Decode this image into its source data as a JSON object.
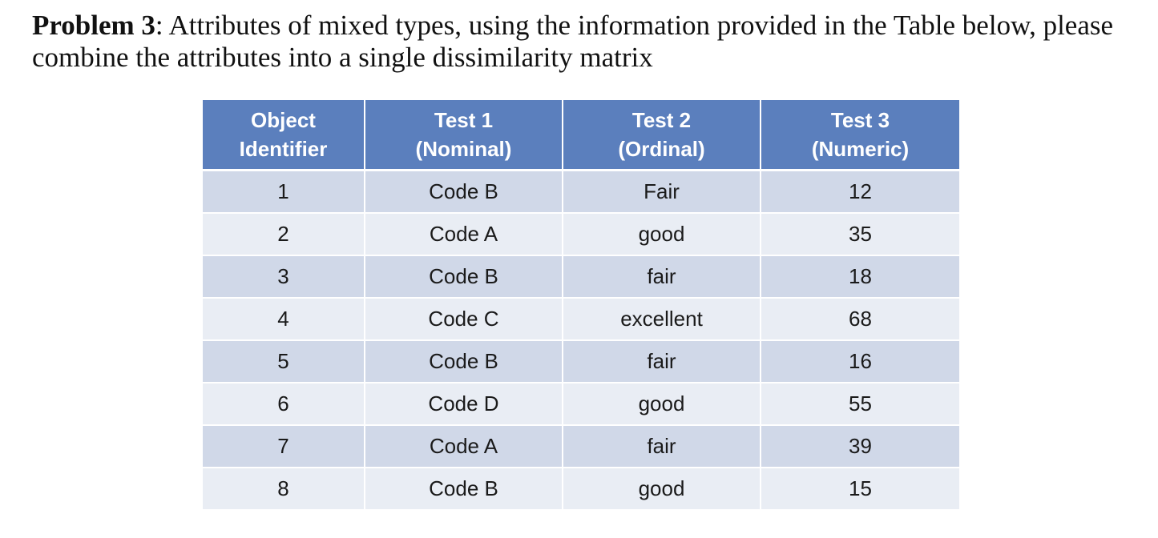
{
  "problem": {
    "label": "Problem 3",
    "text": ": Attributes of mixed types, using the information provided in the Table below, please combine the attributes into a single dissimilarity matrix"
  },
  "table": {
    "headers": [
      {
        "line1": "Object",
        "line2": "Identifier"
      },
      {
        "line1": "Test 1",
        "line2": "(Nominal)"
      },
      {
        "line1": "Test 2",
        "line2": "(Ordinal)"
      },
      {
        "line1": "Test 3",
        "line2": "(Numeric)"
      }
    ],
    "rows": [
      [
        "1",
        "Code B",
        "Fair",
        "12"
      ],
      [
        "2",
        "Code A",
        "good",
        "35"
      ],
      [
        "3",
        "Code B",
        "fair",
        "18"
      ],
      [
        "4",
        "Code C",
        "excellent",
        "68"
      ],
      [
        "5",
        "Code B",
        "fair",
        "16"
      ],
      [
        "6",
        "Code D",
        "good",
        "55"
      ],
      [
        "7",
        "Code A",
        "fair",
        "39"
      ],
      [
        "8",
        "Code B",
        "good",
        "15"
      ]
    ]
  },
  "colors": {
    "header_bg": "#5b7fbd",
    "row_odd_bg": "#d0d8e8",
    "row_even_bg": "#e9edf4"
  }
}
